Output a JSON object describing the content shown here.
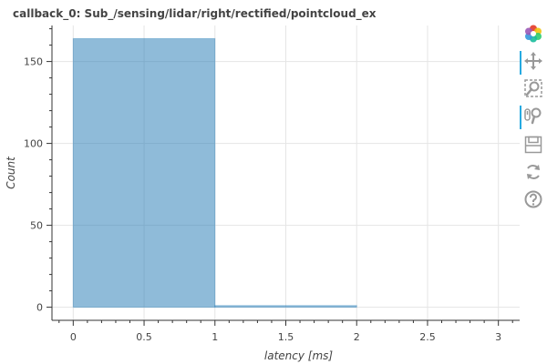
{
  "title": "callback_0: Sub_/sensing/lidar/right/rectified/pointcloud_ex",
  "toolbar": {
    "tools": [
      {
        "icon": "bokeh-logo-icon",
        "active": false
      },
      {
        "icon": "pan-icon",
        "active": true
      },
      {
        "icon": "box-zoom-icon",
        "active": false
      },
      {
        "icon": "wheel-zoom-icon",
        "active": true
      },
      {
        "icon": "save-icon",
        "active": false
      },
      {
        "icon": "reset-icon",
        "active": false
      },
      {
        "icon": "help-icon",
        "active": false
      }
    ]
  },
  "chart_data": {
    "type": "bar",
    "title": "callback_0: Sub_/sensing/lidar/right/rectified/pointcloud_ex",
    "xlabel": "latency [ms]",
    "ylabel": "Count",
    "bins": [
      {
        "x0": 0,
        "x1": 1,
        "count": 164
      },
      {
        "x0": 1,
        "x1": 2,
        "count": 1
      }
    ],
    "xlim": [
      -0.15,
      3.15
    ],
    "ylim": [
      -8,
      172
    ],
    "xticks": [
      "0",
      "0.5",
      "1",
      "1.5",
      "2",
      "2.5",
      "3"
    ],
    "yticks": [
      "0",
      "50",
      "100",
      "150"
    ],
    "grid": true,
    "bar_color": "#1f77b4",
    "legend": false
  }
}
